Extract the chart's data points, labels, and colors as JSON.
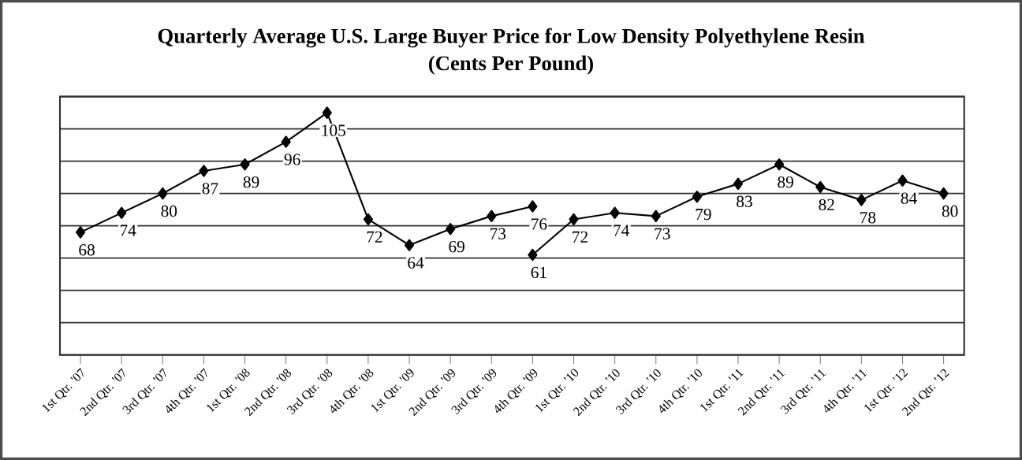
{
  "chart_data": {
    "type": "line",
    "title": "Quarterly Average U.S. Large Buyer Price for Low Density Polyethylene Resin",
    "subtitle": "(Cents Per Pound)",
    "categories": [
      "1st Qtr. '07",
      "2nd Qtr. '07",
      "3rd Qtr. '07",
      "4th Qtr. '07",
      "1st Qtr. '08",
      "2nd Qtr. '08",
      "3rd Qtr. '08",
      "4th Qtr. '08",
      "1st Qtr. '09",
      "2nd Qtr. '09",
      "3rd Qtr. '09",
      "4th Qtr. '09",
      "1st Qtr. '10",
      "2nd Qtr. '10",
      "3rd Qtr. '10",
      "4th Qtr. '10",
      "1st Qtr. '11",
      "2nd Qtr. '11",
      "3rd Qtr. '11",
      "4th Qtr. '11",
      "1st Qtr. '12",
      "2nd Qtr. '12"
    ],
    "series": [
      {
        "color": "#000000",
        "values": [
          68,
          74,
          80,
          87,
          89,
          96,
          105,
          72,
          64,
          69,
          73,
          76,
          null,
          null,
          null,
          null,
          null,
          null,
          null,
          null,
          null,
          null
        ]
      },
      {
        "color": "#000000",
        "values": [
          null,
          null,
          null,
          null,
          null,
          null,
          null,
          null,
          null,
          null,
          null,
          61,
          72,
          74,
          73,
          79,
          83,
          89,
          82,
          78,
          84,
          80
        ]
      }
    ],
    "ylim": [
      30,
      110
    ],
    "yticks": [
      {
        "value": 30,
        "label": null
      },
      {
        "value": 40,
        "label": null
      },
      {
        "value": 50,
        "label": null
      },
      {
        "value": 60,
        "label": null
      },
      {
        "value": 70,
        "label": null
      },
      {
        "value": 80,
        "label": null
      },
      {
        "value": 90,
        "label": null
      },
      {
        "value": 100,
        "label": null
      },
      {
        "value": 110,
        "label": null
      }
    ],
    "tick_labels": "x",
    "grid": "y",
    "marker": "diamond",
    "line_style": "solid",
    "data_labels": true
  }
}
